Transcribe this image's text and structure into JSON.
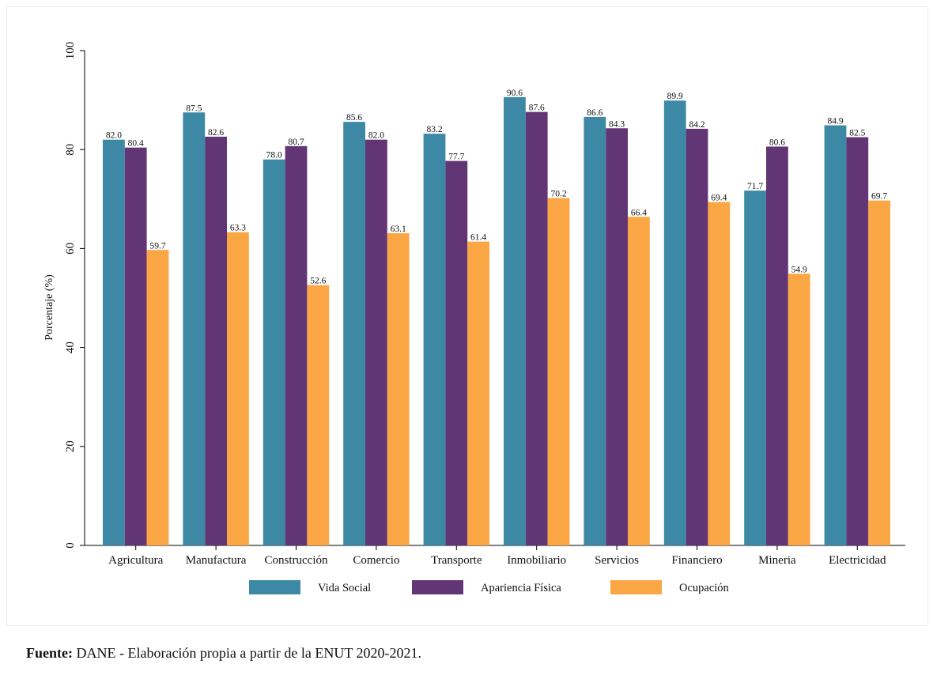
{
  "chart_data": {
    "type": "bar",
    "title": "",
    "xlabel": "",
    "ylabel": "Porcentaje (%)",
    "ylim": [
      0,
      100
    ],
    "yticks": [
      0,
      20,
      40,
      60,
      80,
      100
    ],
    "grid": false,
    "legend_position": "bottom",
    "categories": [
      "Agricultura",
      "Manufactura",
      "Construcción",
      "Comercio",
      "Transporte",
      "Inmobiliario",
      "Servicios",
      "Financiero",
      "Mineria",
      "Electricidad"
    ],
    "series": [
      {
        "name": "Vida Social",
        "color": "#3D89A5",
        "values": [
          82.0,
          87.5,
          78.0,
          85.6,
          83.2,
          90.6,
          86.6,
          89.9,
          71.7,
          84.9
        ],
        "labels": [
          "82.0",
          "87.5",
          "78.0",
          "85.6",
          "83.2",
          "90.6",
          "86.6",
          "89.9",
          "71.7",
          "84.9"
        ]
      },
      {
        "name": "Apariencia Física",
        "color": "#623675",
        "values": [
          80.4,
          82.6,
          80.7,
          82.0,
          77.7,
          87.6,
          84.3,
          84.2,
          80.6,
          82.5
        ],
        "labels": [
          "80.4",
          "82.6",
          "80.7",
          "82.0",
          "77.7",
          "87.6",
          "84.3",
          "84.2",
          "80.6",
          "82.5"
        ]
      },
      {
        "name": "Ocupación",
        "color": "#FAA644",
        "values": [
          59.7,
          63.3,
          52.6,
          63.1,
          61.4,
          70.2,
          66.4,
          69.4,
          54.9,
          69.7
        ],
        "labels": [
          "59.7",
          "63.3",
          "52.6",
          "63.1",
          "61.4",
          "70.2",
          "66.4",
          "69.4",
          "54.9",
          "69.7"
        ]
      }
    ]
  },
  "footer": {
    "source_label": "Fuente:",
    "source_text": " DANE - Elaboración propia a partir de la ENUT 2020-2021."
  }
}
